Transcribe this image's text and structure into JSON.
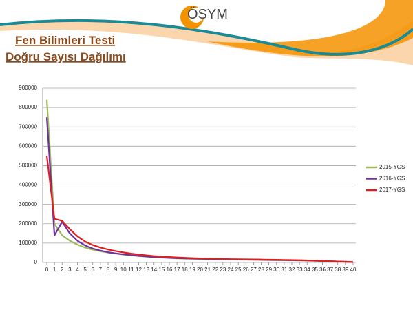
{
  "slide": {
    "logo": "ÖSYM",
    "title": [
      "Fen Bilimleri Testi",
      "Doğru Sayısı Dağılımı"
    ]
  },
  "chart_data": {
    "type": "line",
    "x": [
      0,
      1,
      2,
      3,
      4,
      5,
      6,
      7,
      8,
      9,
      10,
      11,
      12,
      13,
      14,
      15,
      16,
      17,
      18,
      19,
      20,
      21,
      22,
      23,
      24,
      25,
      26,
      27,
      28,
      29,
      30,
      31,
      32,
      33,
      34,
      35,
      36,
      37,
      38,
      39,
      40
    ],
    "xlim": [
      0,
      40
    ],
    "ylim": [
      0,
      900000
    ],
    "yticks": [
      0,
      100000,
      200000,
      300000,
      400000,
      500000,
      600000,
      700000,
      800000,
      900000
    ],
    "grid": true,
    "legend": "right",
    "series": [
      {
        "name": "2015-YGS",
        "color": "#9bbb59",
        "values": [
          840000,
          200000,
          140000,
          112000,
          92000,
          77000,
          66000,
          58000,
          51000,
          46000,
          41000,
          37000,
          33000,
          30000,
          27000,
          25000,
          23000,
          21000,
          20000,
          19000,
          18000,
          17000,
          16000,
          15500,
          15000,
          14500,
          14000,
          13500,
          13000,
          12500,
          12000,
          11500,
          11000,
          10500,
          9500,
          8500,
          7500,
          6000,
          4500,
          3000,
          1500
        ]
      },
      {
        "name": "2016-YGS",
        "color": "#7030a0",
        "values": [
          750000,
          140000,
          210000,
          150000,
          112000,
          88000,
          72000,
          61000,
          53000,
          47000,
          42000,
          38000,
          34000,
          31000,
          28000,
          26000,
          24000,
          22000,
          21000,
          20000,
          19000,
          18000,
          17000,
          16000,
          15500,
          15000,
          14500,
          14000,
          13500,
          13000,
          12500,
          12000,
          11500,
          11000,
          10000,
          9000,
          8000,
          6500,
          5000,
          3500,
          2000
        ]
      },
      {
        "name": "2017-YGS",
        "color": "#e01e1e",
        "values": [
          550000,
          225000,
          215000,
          172000,
          135000,
          108000,
          90000,
          77000,
          67000,
          59000,
          52000,
          46000,
          41000,
          37000,
          33000,
          30000,
          28000,
          26000,
          24000,
          22500,
          21000,
          20000,
          19000,
          18000,
          17000,
          16500,
          16000,
          15500,
          15000,
          14500,
          14000,
          13000,
          12500,
          11500,
          10500,
          9500,
          8000,
          6500,
          5000,
          3500,
          2000
        ]
      }
    ]
  }
}
